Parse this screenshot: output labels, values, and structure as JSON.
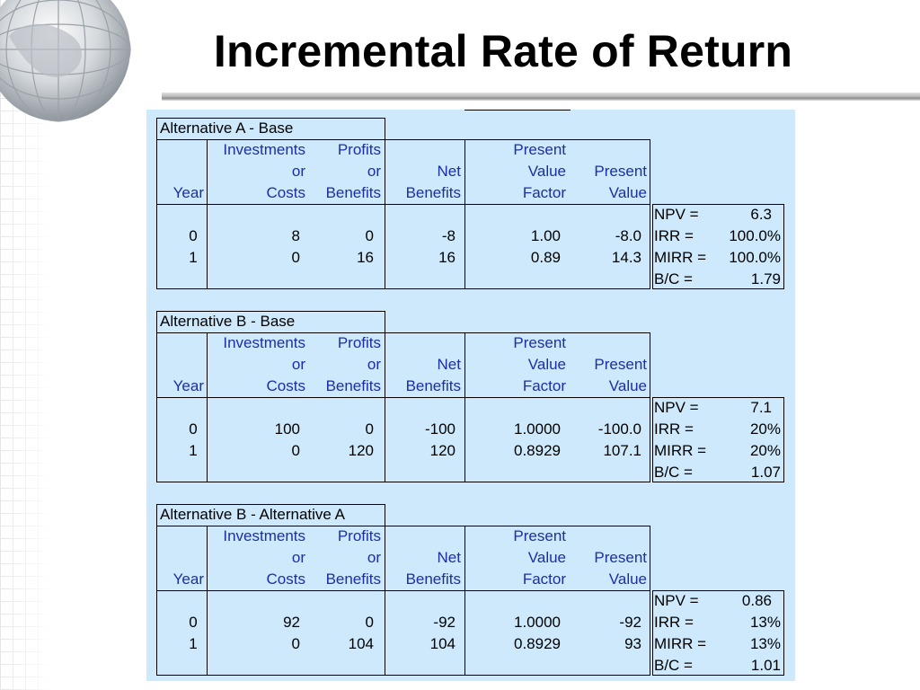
{
  "title": "Incremental Rate of Return",
  "headers": {
    "year": "Year",
    "investments": [
      "Investments",
      "or",
      "Costs"
    ],
    "profits": [
      "Profits",
      "or",
      "Benefits"
    ],
    "net": [
      "Net",
      "Benefits"
    ],
    "pvf": [
      "Present",
      "Value",
      "Factor"
    ],
    "pv": [
      "Present",
      "Value"
    ]
  },
  "tables": [
    {
      "name": "Alternative A - Base",
      "rows": [
        {
          "year": "0",
          "investments": "8",
          "profits": "0",
          "net": "-8",
          "pvf": "1.00",
          "pv": "-8.0"
        },
        {
          "year": "1",
          "investments": "0",
          "profits": "16",
          "net": "16",
          "pvf": "0.89",
          "pv": "14.3"
        }
      ],
      "metrics": [
        {
          "label": "NPV =",
          "value": "6.3"
        },
        {
          "label": "IRR =",
          "value": "100.0%"
        },
        {
          "label": "MIRR =",
          "value": "100.0%"
        },
        {
          "label": "B/C =",
          "value": "1.79"
        }
      ]
    },
    {
      "name": "Alternative B - Base",
      "rows": [
        {
          "year": "0",
          "investments": "100",
          "profits": "0",
          "net": "-100",
          "pvf": "1.0000",
          "pv": "-100.0"
        },
        {
          "year": "1",
          "investments": "0",
          "profits": "120",
          "net": "120",
          "pvf": "0.8929",
          "pv": "107.1"
        }
      ],
      "metrics": [
        {
          "label": "NPV =",
          "value": "7.1"
        },
        {
          "label": "IRR =",
          "value": "20%"
        },
        {
          "label": "MIRR =",
          "value": "20%"
        },
        {
          "label": "B/C =",
          "value": "1.07"
        }
      ]
    },
    {
      "name": "Alternative B - Alternative A",
      "rows": [
        {
          "year": "0",
          "investments": "92",
          "profits": "0",
          "net": "-92",
          "pvf": "1.0000",
          "pv": "-92"
        },
        {
          "year": "1",
          "investments": "0",
          "profits": "104",
          "net": "104",
          "pvf": "0.8929",
          "pv": "93"
        }
      ],
      "metrics": [
        {
          "label": "NPV =",
          "value": "0.86"
        },
        {
          "label": "IRR =",
          "value": "13%"
        },
        {
          "label": "MIRR =",
          "value": "13%"
        },
        {
          "label": "B/C =",
          "value": "1.01"
        }
      ]
    }
  ]
}
